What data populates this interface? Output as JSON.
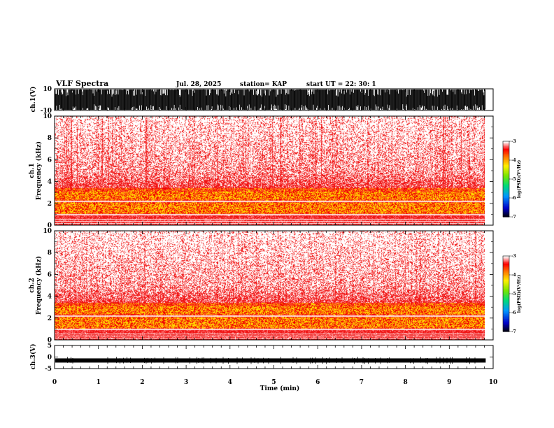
{
  "header": {
    "title": "VLF Spectra",
    "date": "Jul. 28, 2025",
    "station": "station= KAP",
    "start": "start  UT  =   22: 30: 1"
  },
  "chart_data": [
    {
      "type": "line",
      "name": "ch1-waveform",
      "ylabel": "ch.1(V)",
      "ylim": [
        -10,
        10
      ],
      "yticks": [
        "10",
        "-10"
      ],
      "xlim": [
        0,
        10
      ],
      "data_extent_min": 9.83,
      "description_value": "dense noisy waveform saturating near +/-10 V"
    },
    {
      "type": "heatmap",
      "name": "ch1-spectrogram",
      "ylabel": "ch.1\nFrequency  (kHz)",
      "ylim": [
        0,
        10
      ],
      "yticks": [
        "0",
        "2",
        "4",
        "6",
        "8",
        "10"
      ],
      "xlim": [
        0,
        10
      ],
      "data_extent_min": 9.83,
      "colorbar": {
        "label": "log(PSD)(V²/Hz)",
        "ticks": [
          "-3",
          "-4",
          "-5",
          "-6",
          "-7"
        ],
        "range": [
          -7,
          -3
        ]
      }
    },
    {
      "type": "heatmap",
      "name": "ch2-spectrogram",
      "ylabel": "ch.2\nFrequency  (kHz)",
      "ylim": [
        0,
        10
      ],
      "yticks": [
        "0",
        "2",
        "4",
        "6",
        "8",
        "10"
      ],
      "xlim": [
        0,
        10
      ],
      "data_extent_min": 9.83,
      "colorbar": {
        "label": "log(PSD)(V²/Hz)",
        "ticks": [
          "-3",
          "-4",
          "-5",
          "-6",
          "-7"
        ],
        "range": [
          -7,
          -3
        ]
      }
    },
    {
      "type": "line",
      "name": "ch3-waveform",
      "ylabel": "ch.3(V)",
      "ylim": [
        -5,
        5
      ],
      "yticks": [
        "5",
        "0",
        "-5"
      ],
      "xlim": [
        0,
        10
      ],
      "data_extent_min": 9.83,
      "description_value": "narrow band near -1.5 V"
    }
  ],
  "xaxis": {
    "label": "Time  (min)",
    "ticks": [
      "0",
      "1",
      "2",
      "3",
      "4",
      "5",
      "6",
      "7",
      "8",
      "9",
      "10"
    ]
  },
  "colors": {
    "spec_low": "#ffffff",
    "spec_mid": "#ff0000",
    "spec_high": "#ffee00",
    "trace": "#000000"
  }
}
